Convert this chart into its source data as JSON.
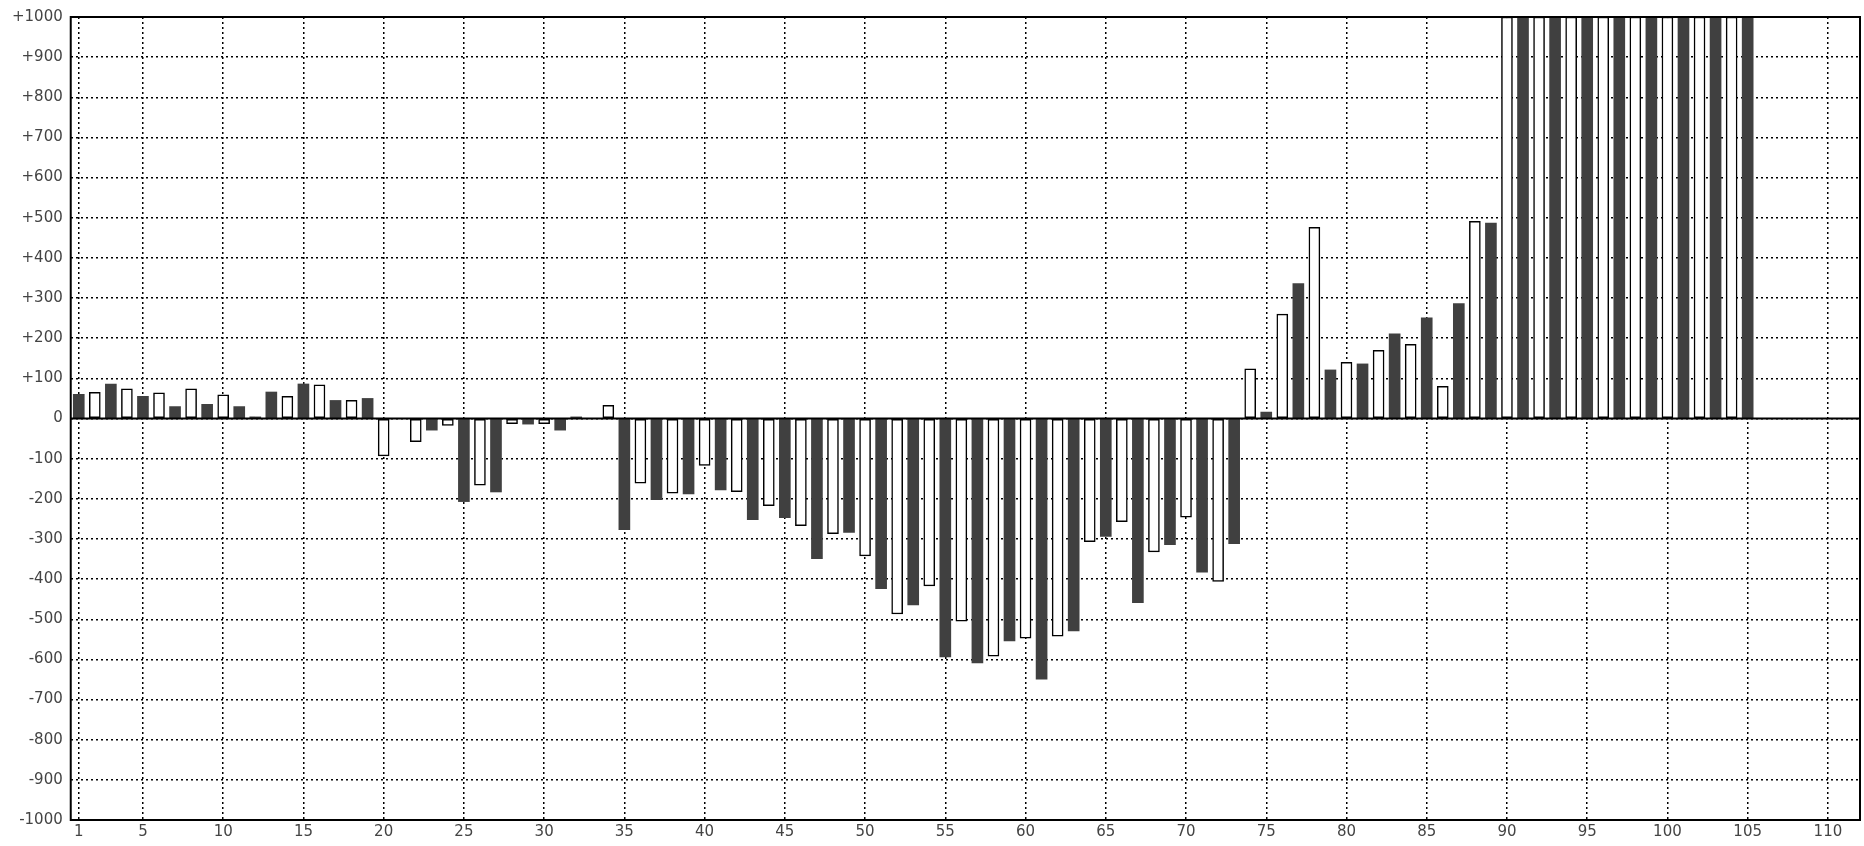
{
  "chart_data": {
    "type": "bar",
    "x": [
      1,
      2,
      3,
      4,
      5,
      6,
      7,
      8,
      9,
      10,
      11,
      12,
      13,
      14,
      15,
      16,
      17,
      18,
      19,
      20,
      21,
      22,
      23,
      24,
      25,
      26,
      27,
      28,
      29,
      30,
      31,
      32,
      33,
      34,
      35,
      36,
      37,
      38,
      39,
      40,
      41,
      42,
      43,
      44,
      45,
      46,
      47,
      48,
      49,
      50,
      51,
      52,
      53,
      54,
      55,
      56,
      57,
      58,
      59,
      60,
      61,
      62,
      63,
      64,
      65,
      66,
      67,
      68,
      69,
      70,
      71,
      72,
      73,
      74,
      75,
      76,
      77,
      78,
      79,
      80,
      81,
      82,
      83,
      84,
      85,
      86,
      87,
      88,
      89,
      90,
      91,
      92,
      93,
      94,
      95,
      96,
      97,
      98,
      99,
      100,
      101,
      102,
      103,
      104,
      105
    ],
    "values": [
      60,
      65,
      86,
      74,
      55,
      64,
      30,
      74,
      35,
      59,
      30,
      4,
      66,
      55,
      86,
      84,
      45,
      45,
      50,
      -93,
      null,
      -58,
      -29,
      -17,
      -207,
      -166,
      -183,
      -13,
      -14,
      -13,
      -29,
      4,
      null,
      33,
      -277,
      -161,
      -202,
      -186,
      -188,
      -117,
      -178,
      -182,
      -252,
      -217,
      -247,
      -267,
      -349,
      -287,
      -284,
      -342,
      -424,
      -487,
      -464,
      -417,
      -594,
      -505,
      -609,
      -592,
      -554,
      -547,
      -649,
      -542,
      -529,
      -307,
      -294,
      -257,
      -459,
      -332,
      -314,
      -246,
      -383,
      -406,
      -312,
      124,
      16,
      260,
      336,
      476,
      121,
      140,
      136,
      170,
      211,
      185,
      251,
      80,
      286,
      491,
      487,
      1000,
      1000,
      1000,
      1000,
      1000,
      1000,
      1000,
      1000,
      1000,
      1000,
      1000,
      1000,
      1000,
      1000,
      1000,
      1000
    ],
    "colors": [
      "#404040",
      "#ffffff",
      "#404040",
      "#ffffff",
      "#404040",
      "#ffffff",
      "#404040",
      "#ffffff",
      "#404040",
      "#ffffff",
      "#404040",
      "#404040",
      "#404040",
      "#ffffff",
      "#404040",
      "#ffffff",
      "#404040",
      "#ffffff",
      "#404040",
      "#ffffff",
      null,
      "#ffffff",
      "#404040",
      "#ffffff",
      "#404040",
      "#ffffff",
      "#404040",
      "#ffffff",
      "#404040",
      "#ffffff",
      "#404040",
      "#404040",
      null,
      "#ffffff",
      "#404040",
      "#ffffff",
      "#404040",
      "#ffffff",
      "#404040",
      "#ffffff",
      "#404040",
      "#ffffff",
      "#404040",
      "#ffffff",
      "#404040",
      "#ffffff",
      "#404040",
      "#ffffff",
      "#404040",
      "#ffffff",
      "#404040",
      "#ffffff",
      "#404040",
      "#ffffff",
      "#404040",
      "#ffffff",
      "#404040",
      "#ffffff",
      "#404040",
      "#ffffff",
      "#404040",
      "#ffffff",
      "#404040",
      "#ffffff",
      "#404040",
      "#ffffff",
      "#404040",
      "#ffffff",
      "#404040",
      "#ffffff",
      "#404040",
      "#ffffff",
      "#404040",
      "#ffffff",
      "#404040",
      "#ffffff",
      "#404040",
      "#ffffff",
      "#404040",
      "#ffffff",
      "#404040",
      "#ffffff",
      "#404040",
      "#ffffff",
      "#404040",
      "#ffffff",
      "#404040",
      "#ffffff",
      "#404040",
      "#ffffff",
      "#404040",
      "#ffffff",
      "#404040",
      "#ffffff",
      "#404040",
      "#ffffff",
      "#404040",
      "#ffffff",
      "#404040",
      "#ffffff",
      "#404040",
      "#ffffff",
      "#404040",
      "#ffffff",
      "#404040"
    ],
    "xlim": [
      0.5,
      112
    ],
    "xticks": [
      1,
      5,
      10,
      15,
      20,
      25,
      30,
      35,
      40,
      45,
      50,
      55,
      60,
      65,
      70,
      75,
      80,
      85,
      90,
      95,
      100,
      105,
      110
    ],
    "ylim": [
      -1000,
      1000
    ],
    "yticks": [
      -1000,
      -900,
      -800,
      -700,
      -600,
      -500,
      -400,
      -300,
      -200,
      -100,
      0,
      {
        "value": 100,
        "label": "+100"
      },
      {
        "value": 200,
        "label": "+200"
      },
      {
        "value": 300,
        "label": "+300"
      },
      {
        "value": 400,
        "label": "+400"
      },
      {
        "value": 500,
        "label": "+500"
      },
      {
        "value": 600,
        "label": "+600"
      },
      {
        "value": 700,
        "label": "+700"
      },
      {
        "value": 800,
        "label": "+800"
      },
      {
        "value": 900,
        "label": "+900"
      },
      {
        "value": 1000,
        "label": "+1000"
      }
    ],
    "grid": true
  }
}
